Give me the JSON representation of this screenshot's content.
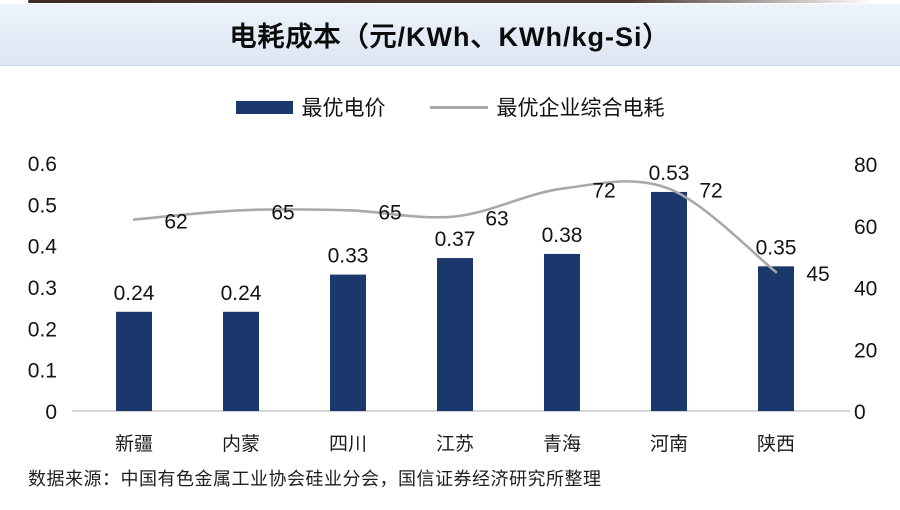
{
  "header": {
    "title": "电耗成本（元/KWh、KWh/kg-Si）"
  },
  "legend": {
    "items": [
      {
        "label": "最优电价",
        "swatch": "bar-swatch",
        "color": "#1a386b"
      },
      {
        "label": "最优企业综合电耗",
        "swatch": "line-swatch",
        "color": "#a9a9a9"
      }
    ]
  },
  "footer": {
    "source": "数据来源：中国有色金属工业协会硅业分会，国信证券经济研究所整理"
  },
  "colors": {
    "bar": "#1a386b",
    "line": "#a9a9a9",
    "axis_line": "#c8c8c8",
    "banner_bg": "#e3ebf6",
    "top_border": "#2e1812"
  },
  "chart_data": {
    "type": "bar",
    "title": "电耗成本（元/KWh、KWh/kg-Si）",
    "categories": [
      "新疆",
      "内蒙",
      "四川",
      "江苏",
      "青海",
      "河南",
      "陕西"
    ],
    "series": [
      {
        "name": "最优电价",
        "type": "bar",
        "axis": "left",
        "unit": "元/KWh",
        "color": "#1a386b",
        "values": [
          0.24,
          0.24,
          0.33,
          0.37,
          0.38,
          0.53,
          0.35
        ]
      },
      {
        "name": "最优企业综合电耗",
        "type": "line",
        "axis": "right",
        "unit": "KWh/kg-Si",
        "color": "#a9a9a9",
        "values": [
          62,
          65,
          65,
          63,
          72,
          72,
          45
        ]
      }
    ],
    "left_axis": {
      "min": 0,
      "max": 0.6,
      "ticks": [
        0,
        0.1,
        0.2,
        0.3,
        0.4,
        0.5,
        0.6
      ]
    },
    "right_axis": {
      "min": 0,
      "max": 80,
      "ticks": [
        0,
        20,
        40,
        60,
        80
      ]
    },
    "grid": false,
    "legend_position": "top",
    "data_labels": true
  }
}
